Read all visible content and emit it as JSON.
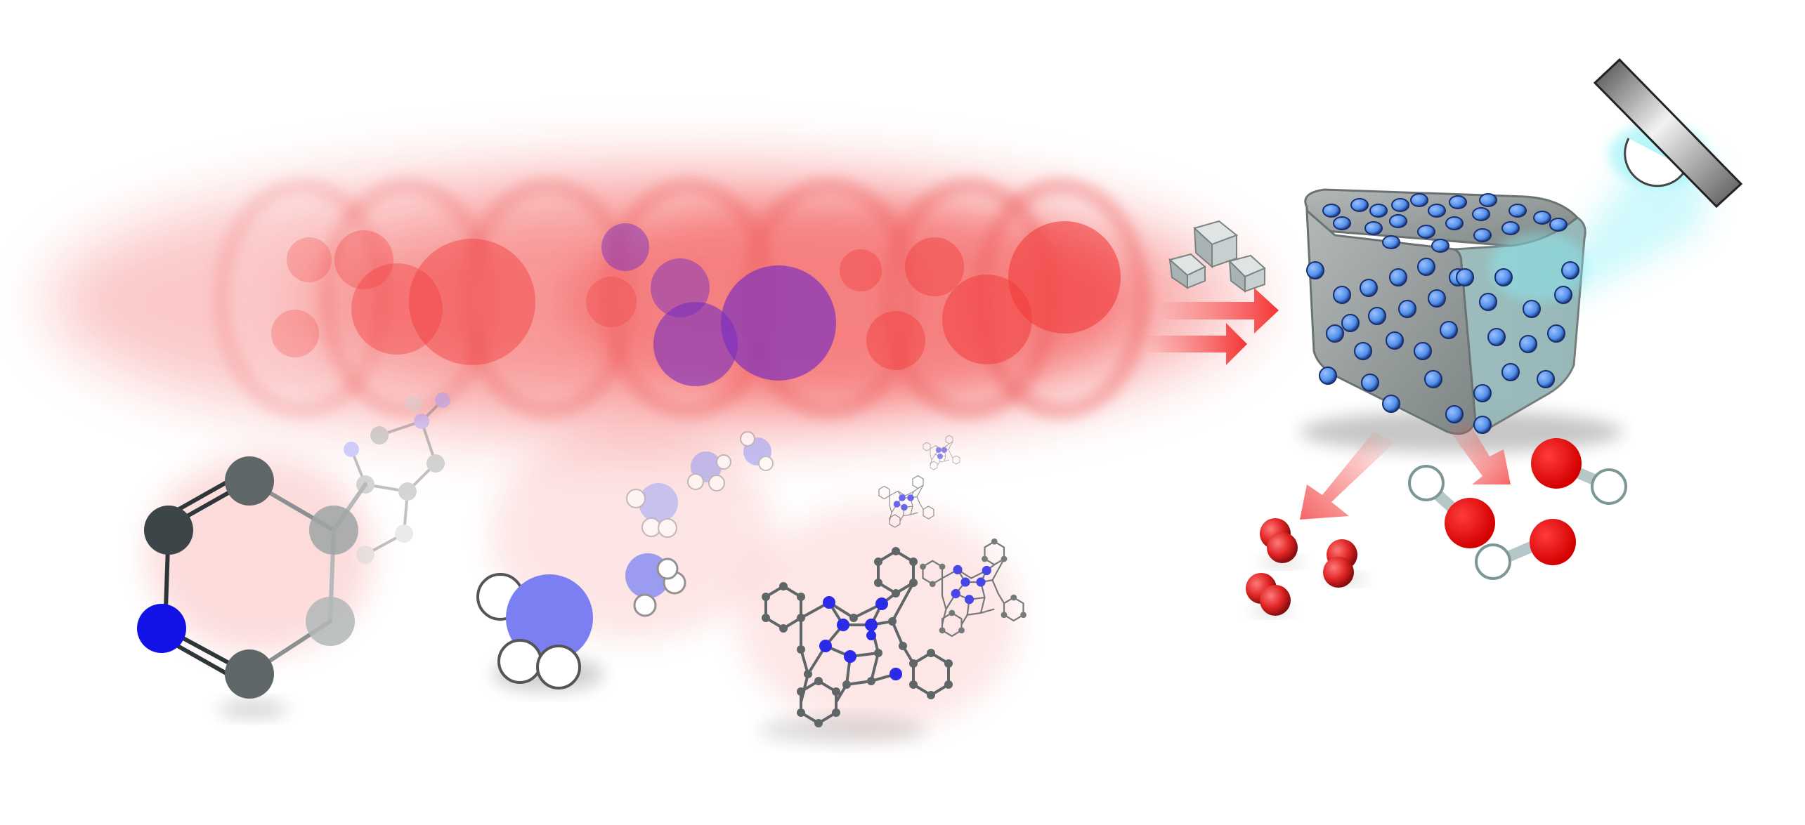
{
  "colors": {
    "background": "#ffffff",
    "laser_red": "#f23c3c",
    "nitrogen_blue": "#1212e6",
    "carbon_dark": "#3c4548",
    "carbon_grey": "#5f6668",
    "water_blue": "#7b7ff2",
    "cluster_grey": "#8e9696",
    "cluster_teal": "#93b9ba",
    "adsorbate_blue": "#4f8fe8",
    "oxygen_red": "#e20000",
    "light_cyan": "#88f0f6",
    "arrow_red": "#f53333"
  },
  "elements": {
    "laser_beam": "laser-beam-icon",
    "pyridine": "pyridine-molecule-icon",
    "water": "water-molecule-icon",
    "phthalocyanine": "phthalocyanine-molecule-icon",
    "cluster": "porous-cluster-icon",
    "crystallites": "crystallites-icon",
    "light_source": "light-source-icon",
    "oxygen_molecules": "o2-molecule-icon",
    "hydroxyl_groups": "hydroxyl-group-icon"
  }
}
